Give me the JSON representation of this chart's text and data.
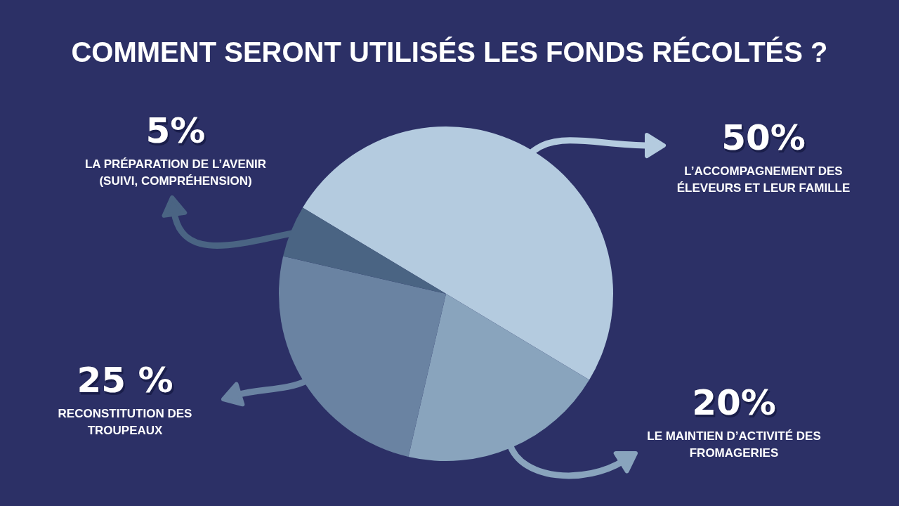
{
  "chart_data": {
    "type": "pie",
    "title": "COMMENT SERONT UTILISÉS LES FONDS RÉCOLTÉS ?",
    "categories": [
      "L’ACCOMPAGNEMENT DES ÉLEVEURS ET LEUR FAMILLE",
      "LE MAINTIEN D’ACTIVITÉ DES FROMAGERIES",
      "RECONSTITUTION DES TROUPEAUX",
      "LA PRÉPARATION DE L’AVENIR (SUIVI, COMPRÉHENSION)"
    ],
    "values": [
      50,
      20,
      25,
      5
    ],
    "colors": [
      "#b4cbdf",
      "#89a4bd",
      "#6a83a2",
      "#4a6483"
    ],
    "value_labels": [
      "50%",
      "20%",
      "25 %",
      "5%"
    ]
  }
}
